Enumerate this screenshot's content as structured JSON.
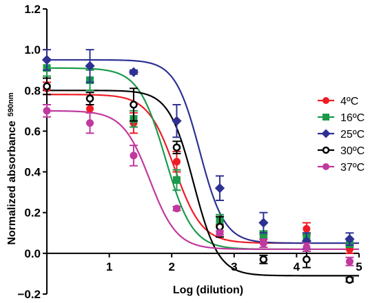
{
  "chart_data": {
    "type": "scatter",
    "xlabel": "Log (dilution)",
    "ylabel": "Normalized absorbance",
    "ylabel_sub": "590nm",
    "xlim": [
      0,
      5
    ],
    "ylim": [
      -0.2,
      1.2
    ],
    "x_ticks": [
      "1",
      "2",
      "3",
      "4",
      "5"
    ],
    "y_ticks": [
      "-0.2",
      "0.0",
      "0.2",
      "0.4",
      "0.6",
      "0.8",
      "1.0",
      "1.2"
    ],
    "grid": false,
    "legend_position": "right",
    "series": [
      {
        "name": "4ºC",
        "color": "#ee1c25",
        "marker": "circle",
        "x": [
          0,
          0.69,
          1.39,
          2.08,
          2.77,
          3.47,
          4.16,
          4.85
        ],
        "y": [
          0.81,
          0.71,
          0.64,
          0.45,
          0.16,
          0.07,
          0.12,
          0.02
        ],
        "err": [
          0.03,
          0.02,
          0.05,
          0.05,
          0.02,
          0.02,
          0.03,
          0.02
        ],
        "fit": {
          "top": 0.78,
          "bottom": 0.05,
          "logec50": 2.05,
          "slope": 2.0
        }
      },
      {
        "name": "16ºC",
        "color": "#1a9a4a",
        "marker": "square",
        "x": [
          0,
          0.69,
          1.39,
          2.08,
          2.77,
          3.47,
          4.16,
          4.85
        ],
        "y": [
          0.91,
          0.85,
          0.66,
          0.36,
          0.16,
          0.09,
          0.08,
          0.05
        ],
        "err": [
          0.04,
          0.05,
          0.04,
          0.05,
          0.03,
          0.02,
          0.02,
          0.02
        ],
        "fit": {
          "top": 0.91,
          "bottom": 0.02,
          "logec50": 1.9,
          "slope": 2.0
        }
      },
      {
        "name": "25ºC",
        "color": "#2e3192",
        "marker": "diamond",
        "x": [
          0,
          0.69,
          1.39,
          2.08,
          2.77,
          3.47,
          4.16,
          4.85
        ],
        "y": [
          0.95,
          0.92,
          0.89,
          0.65,
          0.32,
          0.15,
          0.06,
          0.07
        ],
        "err": [
          0.05,
          0.08,
          0.01,
          0.08,
          0.06,
          0.05,
          0.04,
          0.03
        ],
        "fit": {
          "top": 0.95,
          "bottom": 0.05,
          "logec50": 2.45,
          "slope": 2.2
        }
      },
      {
        "name": "30ºC",
        "color": "#000000",
        "marker": "open-circle",
        "x": [
          0,
          0.69,
          1.39,
          2.08,
          2.77,
          3.47,
          4.16,
          4.85
        ],
        "y": [
          0.82,
          0.76,
          0.73,
          0.52,
          0.13,
          -0.03,
          -0.03,
          -0.13
        ],
        "err": [
          0.04,
          0.03,
          0.08,
          0.03,
          0.05,
          0.02,
          0.04,
          0.01
        ],
        "fit": {
          "top": 0.8,
          "bottom": -0.11,
          "logec50": 2.35,
          "slope": 2.2
        }
      },
      {
        "name": "37ºC",
        "color": "#c0399e",
        "marker": "circle",
        "x": [
          0,
          0.69,
          1.39,
          2.08,
          2.77,
          3.47,
          4.16,
          4.85
        ],
        "y": [
          0.7,
          0.64,
          0.48,
          0.22,
          0.1,
          0.05,
          0.03,
          -0.04
        ],
        "err": [
          0.03,
          0.05,
          0.05,
          0.01,
          0.01,
          0.02,
          0.02,
          0.02
        ],
        "fit": {
          "top": 0.7,
          "bottom": 0.02,
          "logec50": 1.65,
          "slope": 2.0
        }
      }
    ]
  }
}
